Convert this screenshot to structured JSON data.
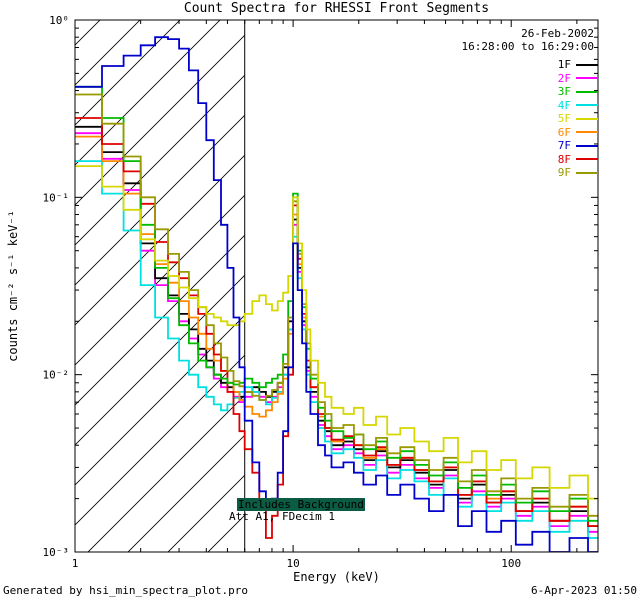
{
  "title": "Count Spectra for RHESSI Front Segments",
  "header": {
    "date": "26-Feb-2002",
    "time_range": "16:28:00 to 16:29:00"
  },
  "legend": {
    "position": "top-right",
    "items": [
      {
        "label": "1F",
        "color": "#000000"
      },
      {
        "label": "2F",
        "color": "#ff00ff"
      },
      {
        "label": "3F",
        "color": "#00bb00"
      },
      {
        "label": "4F",
        "color": "#00e0e0"
      },
      {
        "label": "5F",
        "color": "#d6d600"
      },
      {
        "label": "6F",
        "color": "#ff8800"
      },
      {
        "label": "7F",
        "color": "#0000cc"
      },
      {
        "label": "8F",
        "color": "#dd0000"
      },
      {
        "label": "9F",
        "color": "#999900"
      }
    ]
  },
  "annotations": {
    "background_note": "Includes Background",
    "attenuator_note": "Att A1, FDecim 1",
    "note_bg_color": "#0b5c42"
  },
  "footer": {
    "generated_by": "Generated by hsi_min_spectra_plot.pro",
    "timestamp": "6-Apr-2023 01:50"
  },
  "chart_data": {
    "type": "line",
    "style": "step-histogram",
    "x_scale": "log",
    "y_scale": "log",
    "xrange": [
      1,
      250
    ],
    "yrange": [
      0.001,
      1
    ],
    "xlabel": "Energy (keV)",
    "ylabel": "counts cm⁻² s⁻¹ keV⁻¹",
    "grid": false,
    "xticks": [
      {
        "value": 1,
        "label": "1"
      },
      {
        "value": 10,
        "label": "10"
      },
      {
        "value": 100,
        "label": "100"
      }
    ],
    "yticks": [
      {
        "value": 1,
        "label": "10⁰"
      },
      {
        "value": 0.1,
        "label": "10⁻¹"
      },
      {
        "value": 0.01,
        "label": "10⁻²"
      },
      {
        "value": 0.001,
        "label": "10⁻³"
      }
    ],
    "hatch_region": {
      "xmin": 1,
      "xmax": 6,
      "meaning": "hatched low-energy region below attenuation cutoff"
    },
    "energy_bin_edges_keV": [
      1.0,
      1.33,
      1.67,
      2.0,
      2.33,
      2.67,
      3.0,
      3.33,
      3.67,
      4.0,
      4.33,
      4.67,
      5.0,
      5.33,
      5.67,
      6.0,
      6.5,
      7.0,
      7.5,
      8.0,
      8.5,
      9.0,
      9.5,
      10.0,
      10.5,
      11.0,
      11.5,
      12.0,
      13.0,
      14.0,
      15.0,
      17.0,
      19.0,
      21.0,
      24.0,
      27.0,
      31.0,
      36.0,
      42.0,
      49.0,
      57.0,
      66.0,
      77.0,
      90.0,
      105.0,
      125.0,
      150.0,
      185.0,
      225.0,
      250.0
    ],
    "series": [
      {
        "name": "1F",
        "color": "#000000",
        "values": [
          0.25,
          0.18,
          0.12,
          0.055,
          0.035,
          0.028,
          0.022,
          0.018,
          0.014,
          0.012,
          0.01,
          0.009,
          0.0085,
          0.008,
          0.0075,
          0.008,
          0.0085,
          0.008,
          0.0075,
          0.008,
          0.009,
          0.011,
          0.02,
          0.075,
          0.04,
          0.02,
          0.011,
          0.008,
          0.0055,
          0.0048,
          0.004,
          0.0042,
          0.0038,
          0.0033,
          0.0037,
          0.003,
          0.0033,
          0.0028,
          0.0024,
          0.0029,
          0.002,
          0.0024,
          0.0019,
          0.0021,
          0.0017,
          0.0019,
          0.0015,
          0.0017,
          0.0014
        ]
      },
      {
        "name": "2F",
        "color": "#ff00ff",
        "values": [
          0.23,
          0.165,
          0.11,
          0.05,
          0.032,
          0.026,
          0.02,
          0.016,
          0.013,
          0.011,
          0.0095,
          0.0085,
          0.008,
          0.0075,
          0.007,
          0.0075,
          0.008,
          0.0075,
          0.007,
          0.0075,
          0.0085,
          0.01,
          0.018,
          0.07,
          0.038,
          0.019,
          0.0105,
          0.0075,
          0.0052,
          0.0045,
          0.0038,
          0.004,
          0.0036,
          0.0031,
          0.0035,
          0.0028,
          0.0031,
          0.0026,
          0.0023,
          0.0027,
          0.0019,
          0.0022,
          0.0018,
          0.002,
          0.0016,
          0.0018,
          0.0014,
          0.0016,
          0.0013
        ]
      },
      {
        "name": "3F",
        "color": "#00bb00",
        "values": [
          0.42,
          0.28,
          0.16,
          0.07,
          0.04,
          0.027,
          0.019,
          0.015,
          0.012,
          0.011,
          0.01,
          0.0095,
          0.009,
          0.0088,
          0.009,
          0.0095,
          0.009,
          0.0085,
          0.009,
          0.0095,
          0.01,
          0.013,
          0.026,
          0.105,
          0.05,
          0.024,
          0.014,
          0.0095,
          0.0065,
          0.0055,
          0.0048,
          0.0044,
          0.0046,
          0.0038,
          0.0042,
          0.0034,
          0.0037,
          0.0031,
          0.0027,
          0.0032,
          0.0023,
          0.0027,
          0.0021,
          0.0024,
          0.0019,
          0.0022,
          0.0017,
          0.002,
          0.0015
        ]
      },
      {
        "name": "4F",
        "color": "#00e0e0",
        "values": [
          0.16,
          0.105,
          0.065,
          0.032,
          0.021,
          0.016,
          0.012,
          0.01,
          0.0085,
          0.0075,
          0.0068,
          0.0063,
          0.0068,
          0.0074,
          0.008,
          0.0085,
          0.008,
          0.0072,
          0.0068,
          0.0074,
          0.008,
          0.01,
          0.018,
          0.06,
          0.035,
          0.018,
          0.01,
          0.007,
          0.005,
          0.0042,
          0.0036,
          0.0038,
          0.0034,
          0.0029,
          0.0033,
          0.0026,
          0.0029,
          0.0025,
          0.0021,
          0.0026,
          0.0018,
          0.0021,
          0.0017,
          0.0019,
          0.0015,
          0.0017,
          0.0013,
          0.0015,
          0.0012
        ]
      },
      {
        "name": "5F",
        "color": "#d6d600",
        "values": [
          0.15,
          0.115,
          0.085,
          0.058,
          0.044,
          0.036,
          0.031,
          0.027,
          0.024,
          0.022,
          0.021,
          0.02,
          0.019,
          0.019,
          0.02,
          0.022,
          0.026,
          0.028,
          0.025,
          0.023,
          0.026,
          0.029,
          0.036,
          0.1,
          0.055,
          0.03,
          0.018,
          0.012,
          0.009,
          0.0075,
          0.0065,
          0.006,
          0.0065,
          0.0052,
          0.0058,
          0.0046,
          0.005,
          0.0042,
          0.0037,
          0.0044,
          0.0032,
          0.0037,
          0.0029,
          0.0033,
          0.0026,
          0.003,
          0.0023,
          0.0027,
          0.002
        ]
      },
      {
        "name": "6F",
        "color": "#ff8800",
        "values": [
          0.22,
          0.16,
          0.105,
          0.062,
          0.042,
          0.033,
          0.026,
          0.021,
          0.017,
          0.014,
          0.012,
          0.0105,
          0.009,
          0.008,
          0.0072,
          0.0066,
          0.006,
          0.0058,
          0.0063,
          0.007,
          0.0078,
          0.0095,
          0.017,
          0.08,
          0.042,
          0.021,
          0.012,
          0.0085,
          0.0058,
          0.005,
          0.0042,
          0.0044,
          0.004,
          0.0034,
          0.0038,
          0.0031,
          0.0034,
          0.0029,
          0.0025,
          0.003,
          0.0021,
          0.0025,
          0.002,
          0.0022,
          0.0017,
          0.002,
          0.0015,
          0.0018,
          0.0014
        ]
      },
      {
        "name": "7F",
        "color": "#0000cc",
        "values": [
          0.42,
          0.55,
          0.63,
          0.72,
          0.8,
          0.78,
          0.69,
          0.52,
          0.34,
          0.21,
          0.125,
          0.07,
          0.04,
          0.021,
          0.011,
          0.0055,
          0.0032,
          0.0022,
          0.0018,
          0.002,
          0.0028,
          0.0048,
          0.011,
          0.055,
          0.03,
          0.015,
          0.008,
          0.006,
          0.004,
          0.0035,
          0.003,
          0.0032,
          0.0028,
          0.0024,
          0.0027,
          0.0021,
          0.0024,
          0.002,
          0.0017,
          0.0021,
          0.0014,
          0.0017,
          0.0013,
          0.0015,
          0.0011,
          0.0013,
          0.001,
          0.0012,
          0.001
        ]
      },
      {
        "name": "8F",
        "color": "#dd0000",
        "values": [
          0.28,
          0.2,
          0.14,
          0.092,
          0.056,
          0.043,
          0.035,
          0.028,
          0.022,
          0.017,
          0.013,
          0.0105,
          0.008,
          0.006,
          0.0048,
          0.0038,
          0.0028,
          0.0018,
          0.0012,
          0.0016,
          0.0024,
          0.0045,
          0.01,
          0.09,
          0.045,
          0.022,
          0.012,
          0.0085,
          0.006,
          0.005,
          0.0043,
          0.0045,
          0.004,
          0.0035,
          0.0039,
          0.0031,
          0.0034,
          0.0029,
          0.0025,
          0.003,
          0.0021,
          0.0025,
          0.0019,
          0.0022,
          0.0017,
          0.002,
          0.0015,
          0.0018,
          0.0014
        ]
      },
      {
        "name": "9F",
        "color": "#999900",
        "values": [
          0.38,
          0.26,
          0.17,
          0.1,
          0.066,
          0.048,
          0.038,
          0.03,
          0.024,
          0.019,
          0.015,
          0.0125,
          0.0105,
          0.0092,
          0.0086,
          0.008,
          0.0076,
          0.0072,
          0.0076,
          0.0082,
          0.009,
          0.0115,
          0.021,
          0.095,
          0.048,
          0.025,
          0.015,
          0.01,
          0.007,
          0.006,
          0.005,
          0.0052,
          0.0046,
          0.004,
          0.0044,
          0.0036,
          0.0039,
          0.0033,
          0.0029,
          0.0034,
          0.0025,
          0.0029,
          0.0022,
          0.0026,
          0.002,
          0.0023,
          0.0018,
          0.0021,
          0.0016
        ]
      }
    ]
  }
}
